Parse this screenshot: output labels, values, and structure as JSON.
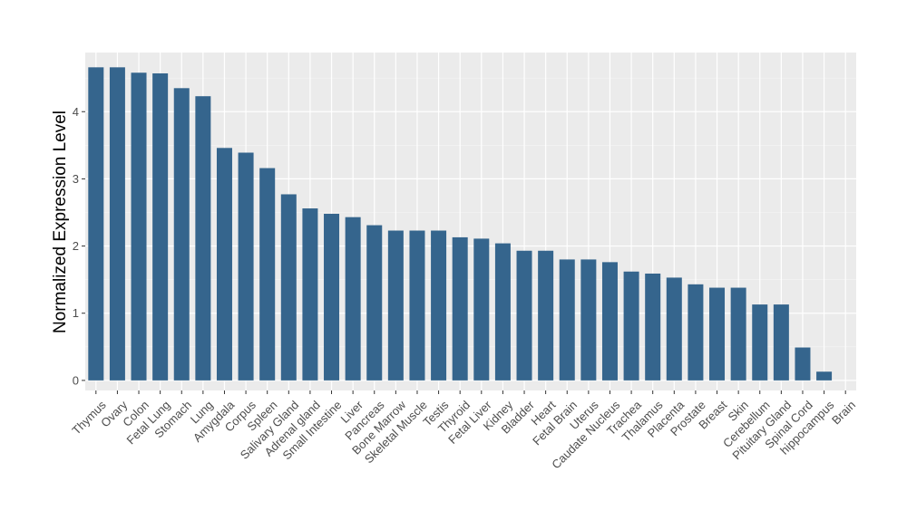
{
  "chart_data": {
    "type": "bar",
    "title": "",
    "xlabel": "",
    "ylabel": "Normalized Expression Level",
    "ylim": [
      -0.15,
      4.88
    ],
    "yticks": [
      0,
      1,
      2,
      3,
      4
    ],
    "grid": true,
    "bar_color": "#35658d",
    "panel_color": "#ebebeb",
    "categories": [
      "Thymus",
      "Ovary",
      "Colon",
      "Fetal Lung",
      "Stomach",
      "Lung",
      "Amygdala",
      "Corpus",
      "Spleen",
      "Salivary Gland",
      "Adrenal gland",
      "Small Intestine",
      "Liver",
      "Pancreas",
      "Bone Marrow",
      "Skeletal Muscle",
      "Testis",
      "Thyroid",
      "Fetal Liver",
      "Kidney",
      "Bladder",
      "Heart",
      "Fetal Brain",
      "Uterus",
      "Caudate Nucleus",
      "Trachea",
      "Thalamus",
      "Placenta",
      "Prostate",
      "Breast",
      "Skin",
      "Cerebellum",
      "Pituitary Gland",
      "Spinal Cord",
      "hippocampus",
      "Brain"
    ],
    "values": [
      4.66,
      4.66,
      4.58,
      4.57,
      4.35,
      4.23,
      3.46,
      3.39,
      3.16,
      2.77,
      2.56,
      2.48,
      2.43,
      2.31,
      2.23,
      2.23,
      2.23,
      2.13,
      2.11,
      2.04,
      1.93,
      1.93,
      1.8,
      1.8,
      1.76,
      1.62,
      1.59,
      1.53,
      1.43,
      1.38,
      1.38,
      1.13,
      1.13,
      0.49,
      0.13,
      0.0
    ]
  }
}
